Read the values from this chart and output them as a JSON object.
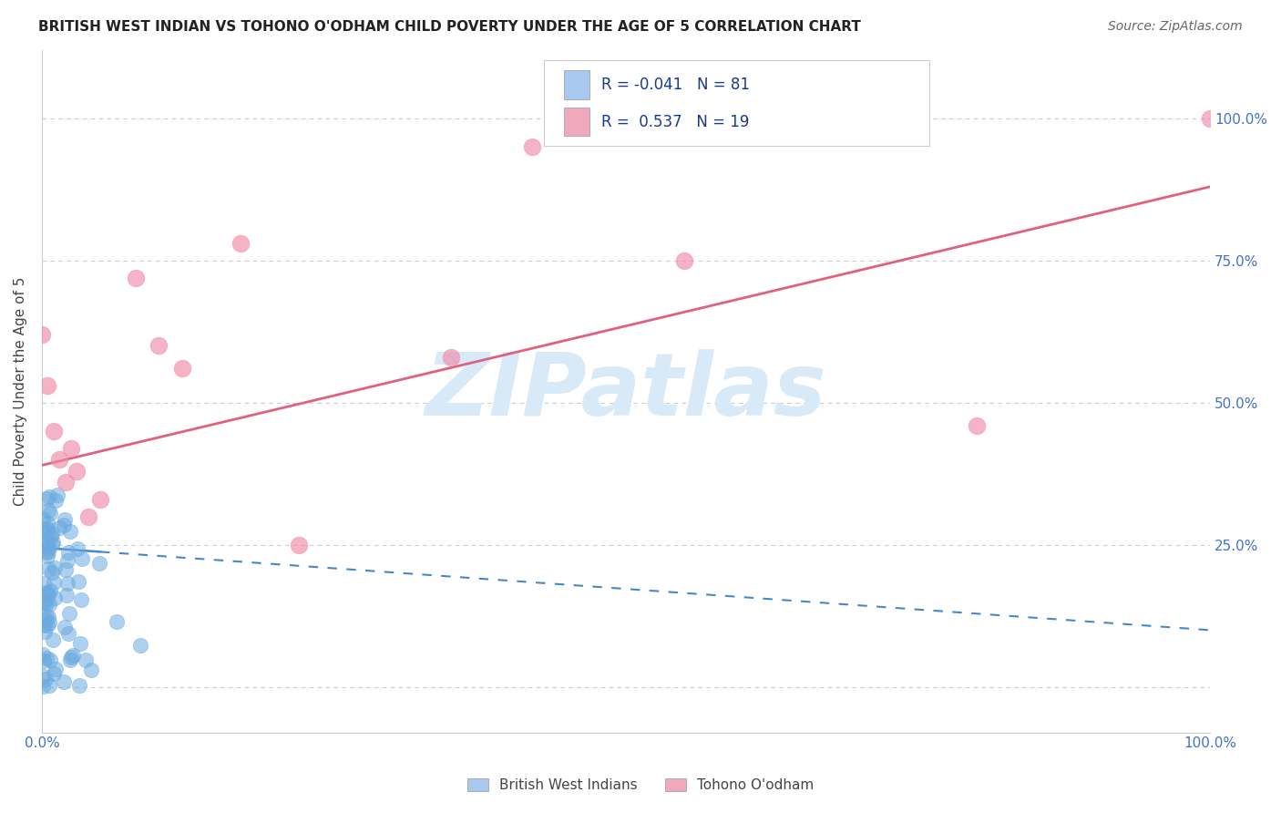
{
  "title": "BRITISH WEST INDIAN VS TOHONO O'ODHAM CHILD POVERTY UNDER THE AGE OF 5 CORRELATION CHART",
  "source": "Source: ZipAtlas.com",
  "ylabel": "Child Poverty Under the Age of 5",
  "background_color": "#ffffff",
  "grid_color": "#cccccc",
  "watermark": "ZIPatlas",
  "legend_entries": [
    {
      "label": "British West Indians",
      "R": "-0.041",
      "N": "81",
      "color": "#a8c8f0"
    },
    {
      "label": "Tohono O'odham",
      "R": "0.537",
      "N": "19",
      "color": "#f0a8bc"
    }
  ],
  "blue_color": "#6aaae0",
  "pink_color": "#f08aaa",
  "blue_line_color": "#4488cc",
  "pink_line_color": "#e06080",
  "axis_label_color": "#4472C4",
  "title_color": "#222222",
  "source_color": "#666666",
  "legend_text_color": "#1a3a8c",
  "watermark_color": "#d8eaf8",
  "watermark_fontsize": 70,
  "title_fontsize": 11,
  "source_fontsize": 10,
  "tick_fontsize": 11,
  "ylabel_fontsize": 11,
  "xlim": [
    0.0,
    1.0
  ],
  "ylim": [
    -0.08,
    1.12
  ],
  "pink_scatter_x": [
    0.0,
    0.005,
    0.01,
    0.015,
    0.02,
    0.025,
    0.03,
    0.04,
    0.05,
    0.08,
    0.1,
    0.12,
    0.17,
    0.22,
    0.35,
    0.55,
    0.8,
    1.0,
    0.42
  ],
  "pink_scatter_y": [
    0.62,
    0.53,
    0.45,
    0.4,
    0.36,
    0.42,
    0.38,
    0.3,
    0.33,
    0.72,
    0.6,
    0.56,
    0.78,
    0.25,
    0.58,
    0.75,
    0.46,
    1.0,
    0.95
  ]
}
